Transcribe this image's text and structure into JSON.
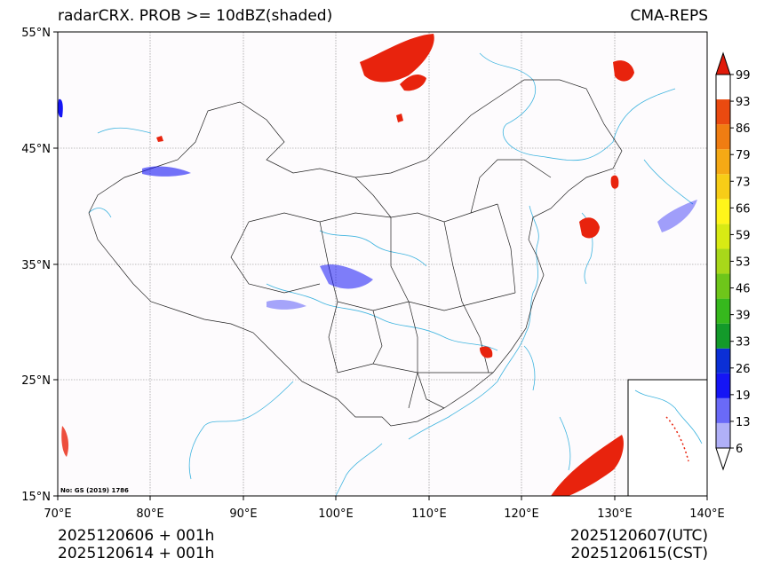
{
  "header": {
    "title": "radarCRX. PROB >= 10dBZ(shaded)",
    "model": "CMA-REPS"
  },
  "axes": {
    "lon_labels": [
      "70°E",
      "80°E",
      "90°E",
      "100°E",
      "110°E",
      "120°E",
      "130°E",
      "140°E"
    ],
    "lat_labels": [
      "55°N",
      "45°N",
      "35°N",
      "25°N",
      "15°N"
    ],
    "lon_range": [
      70,
      140
    ],
    "lat_range": [
      15,
      55
    ]
  },
  "map_note": "No: GS (2019) 1786",
  "colorbar": {
    "levels": [
      "99",
      "93",
      "86",
      "79",
      "73",
      "66",
      "59",
      "53",
      "46",
      "39",
      "33",
      "26",
      "19",
      "13",
      "6"
    ],
    "colors": [
      "#b0b0f8",
      "#6a6af8",
      "#1515f5",
      "#0b2fd6",
      "#139a2a",
      "#36b81d",
      "#6ec61a",
      "#a8d81a",
      "#d8ea14",
      "#fff51a",
      "#f7cd17",
      "#f5a915",
      "#f07d12",
      "#ea4a10",
      "#e8230d",
      "#e01a0a"
    ]
  },
  "footer": {
    "init_utc": "2025120606  +  001h",
    "init_cst": "2025120614  +  001h",
    "valid_utc": "2025120607(UTC)",
    "valid_cst": "2025120615(CST)"
  },
  "style": {
    "river_color": "#3fb4df",
    "grid_color": "#808080",
    "bg_color": "#fdfbfd"
  }
}
